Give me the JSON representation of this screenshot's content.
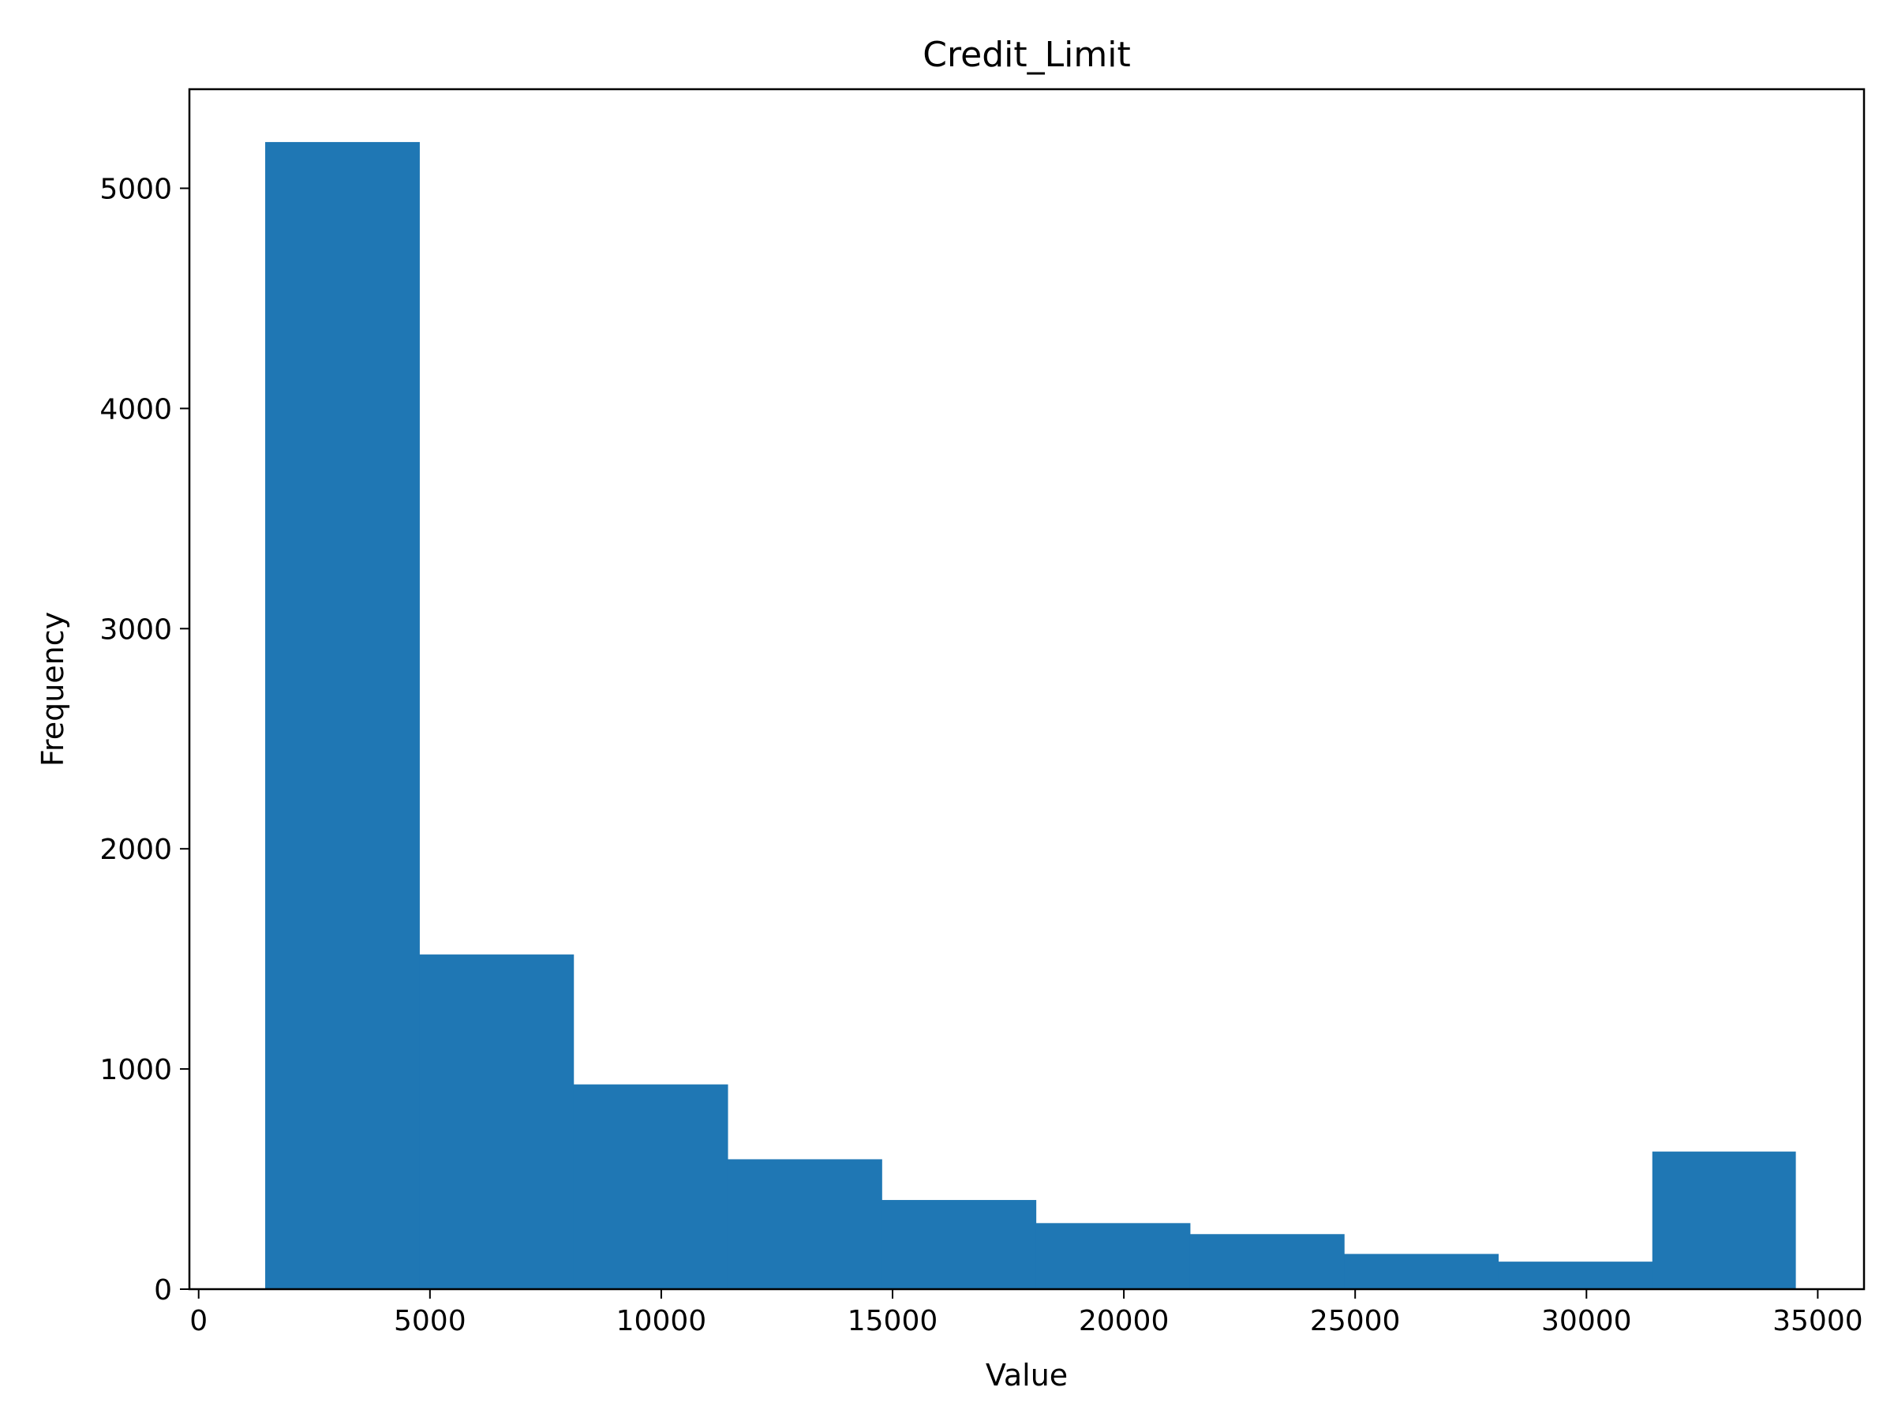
{
  "chart_data": {
    "type": "bar",
    "title": "Credit_Limit",
    "xlabel": "Value",
    "ylabel": "Frequency",
    "xlim": [
      -200,
      36000
    ],
    "ylim": [
      0,
      5450
    ],
    "x_ticks": [
      0,
      5000,
      10000,
      15000,
      20000,
      25000,
      30000,
      35000
    ],
    "y_ticks": [
      0,
      1000,
      2000,
      3000,
      4000,
      5000
    ],
    "bin_edges": [
      1438.3,
      4770.0,
      8101.7,
      11433.4,
      14765.1,
      18096.8,
      21428.5,
      24760.2,
      28091.9,
      31423.6,
      34516.0
    ],
    "values": [
      5210,
      1520,
      930,
      590,
      405,
      300,
      250,
      160,
      125,
      625
    ],
    "bar_color": "#1f77b4",
    "grid": false,
    "legend": "none"
  }
}
